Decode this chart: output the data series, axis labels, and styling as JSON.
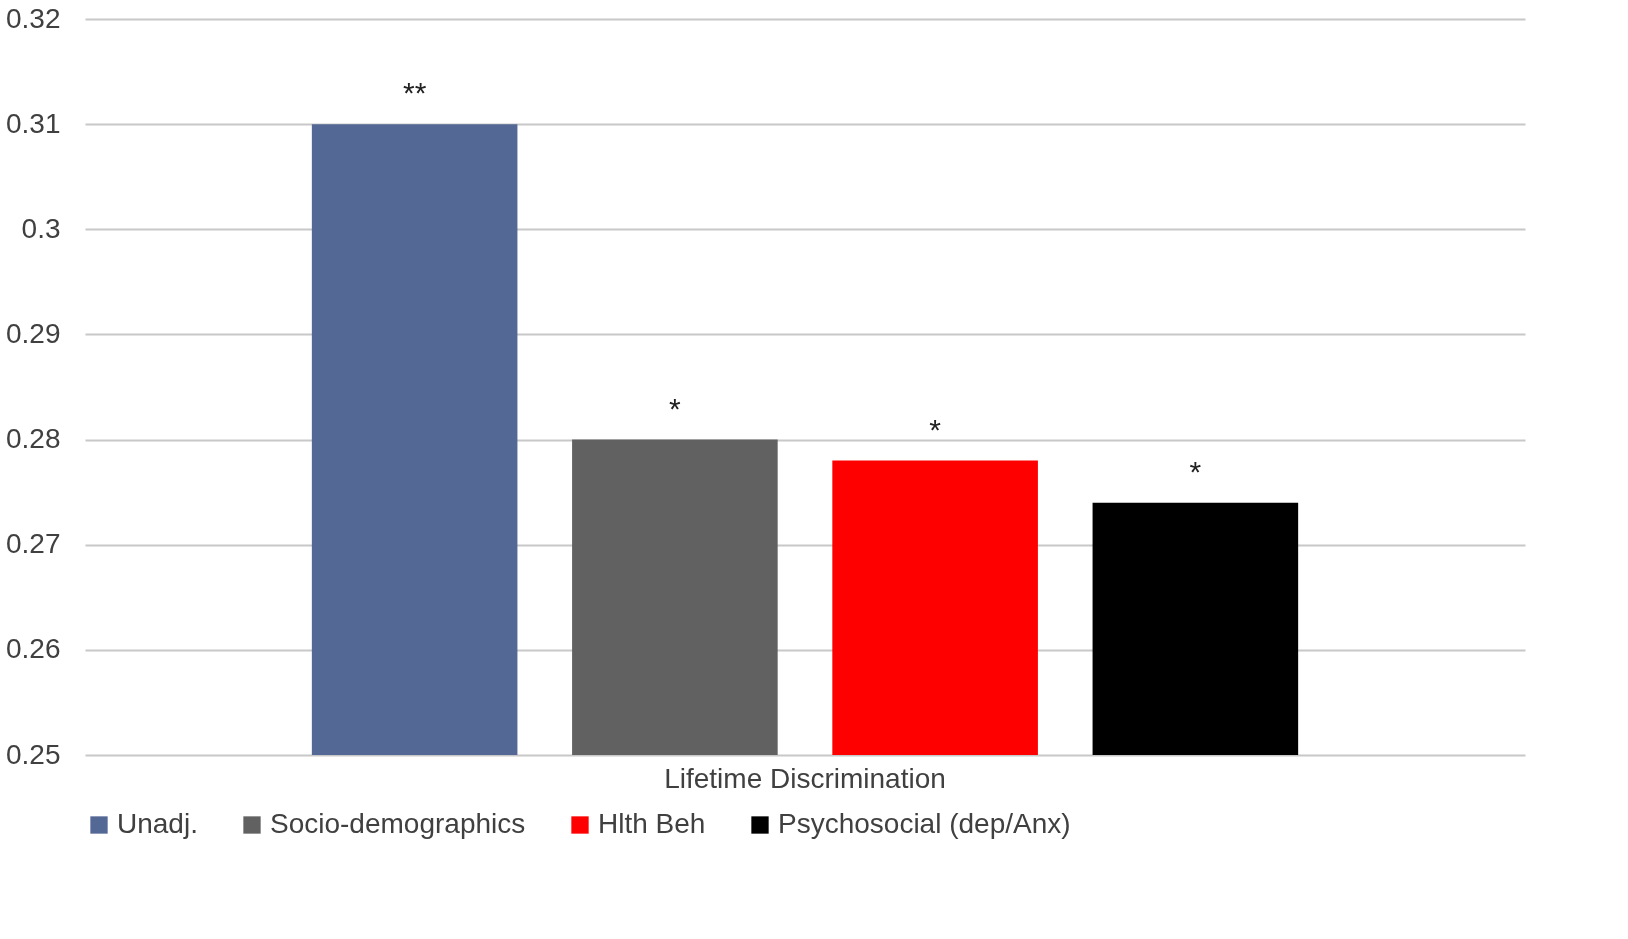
{
  "chart_data": {
    "type": "bar",
    "categories": [
      "Lifetime Discrimination"
    ],
    "series": [
      {
        "name": "Unadj.",
        "color": "#536895",
        "values": [
          0.31
        ]
      },
      {
        "name": "Socio-demographics",
        "color": "#616161",
        "values": [
          0.28
        ]
      },
      {
        "name": "Hlth Beh",
        "color": "#ff0000",
        "values": [
          0.278
        ]
      },
      {
        "name": "Psychosocial (dep/Anx)",
        "color": "#000000",
        "values": [
          0.274
        ]
      }
    ],
    "annotations": [
      "**",
      "*",
      "*",
      "*"
    ],
    "ylim": [
      0.25,
      0.32
    ],
    "yticks": [
      0.25,
      0.26,
      0.27,
      0.28,
      0.29,
      0.3,
      0.31,
      0.32
    ],
    "grid": "y",
    "legend": "bottom"
  }
}
